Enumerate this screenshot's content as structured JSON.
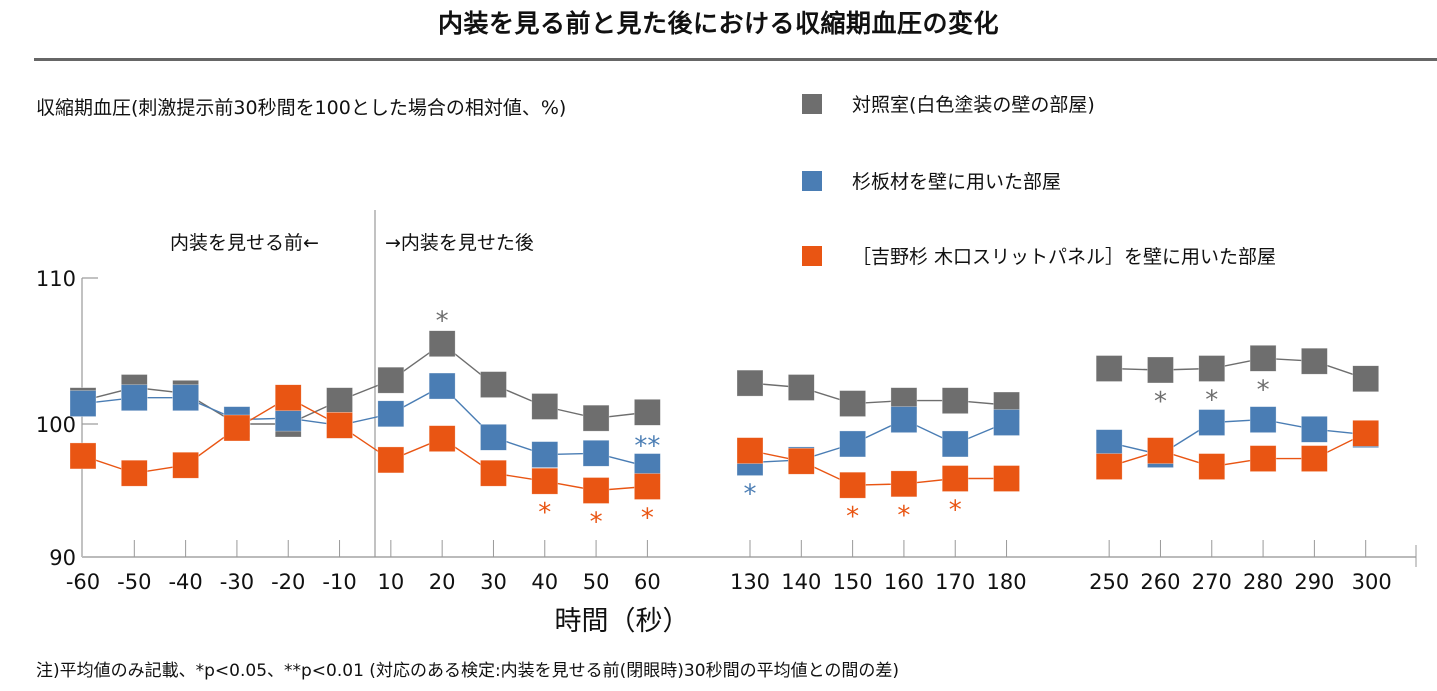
{
  "title": "内装を見る前と見た後における収縮期血圧の変化",
  "note": "注)平均値のみ記載、*p<0.05、**p<0.01 (対応のある検定:内装を見せる前(閉眼時)30秒間の平均値との間の差)",
  "annotations": {
    "before": "内装を見せる前←",
    "after": "→内装を見せた後"
  },
  "chart_data": {
    "type": "line",
    "title": "内装を見る前と見た後における収縮期血圧の変化",
    "ylabel": "収縮期血圧(刺激提示前30秒間を100とした場合の相対値、%)",
    "xlabel": "時間（秒）",
    "ylim": [
      90,
      110
    ],
    "yticks": [
      "90",
      "100",
      "110"
    ],
    "categories": [
      "-60",
      "-50",
      "-40",
      "-30",
      "-20",
      "-10",
      "10",
      "20",
      "30",
      "40",
      "50",
      "60",
      "130",
      "140",
      "150",
      "160",
      "170",
      "180",
      "250",
      "260",
      "270",
      "280",
      "290",
      "300"
    ],
    "legend_position": "top-right",
    "grid": false,
    "series": [
      {
        "name": "対照室(白色塗装の壁の部屋)",
        "color": "#6e6e6e",
        "values": [
          101.6,
          102.5,
          102.1,
          100.0,
          100.0,
          101.6,
          103.0,
          105.5,
          102.7,
          101.2,
          100.4,
          100.8,
          102.8,
          102.5,
          101.4,
          101.6,
          101.6,
          101.3,
          103.8,
          103.7,
          103.8,
          104.5,
          104.3,
          103.1
        ],
        "significance": {
          "20": "*",
          "260": "*",
          "270": "*",
          "280": "*"
        }
      },
      {
        "name": "杉板材を壁に用いた部屋",
        "color": "#4a7db4",
        "values": [
          101.4,
          101.8,
          101.8,
          100.3,
          100.4,
          99.9,
          100.7,
          102.6,
          99.0,
          97.7,
          97.8,
          96.8,
          97.1,
          97.3,
          98.5,
          100.3,
          98.5,
          100.1,
          98.6,
          97.7,
          100.1,
          100.3,
          99.6,
          99.2
        ],
        "significance": {
          "60": "**",
          "130": "*"
        }
      },
      {
        "name": "［吉野杉 木口スリットパネル］を壁に用いた部屋",
        "color": "#e95513",
        "values": [
          97.6,
          96.3,
          96.9,
          99.7,
          101.8,
          99.9,
          97.3,
          98.9,
          96.3,
          95.7,
          95.0,
          95.3,
          98.0,
          97.2,
          95.4,
          95.5,
          95.9,
          95.9,
          96.8,
          98.0,
          96.8,
          97.4,
          97.4,
          99.3
        ],
        "significance": {
          "40": "*",
          "50": "*",
          "60": "*",
          "150": "*",
          "160": "*",
          "170": "*"
        }
      }
    ]
  }
}
